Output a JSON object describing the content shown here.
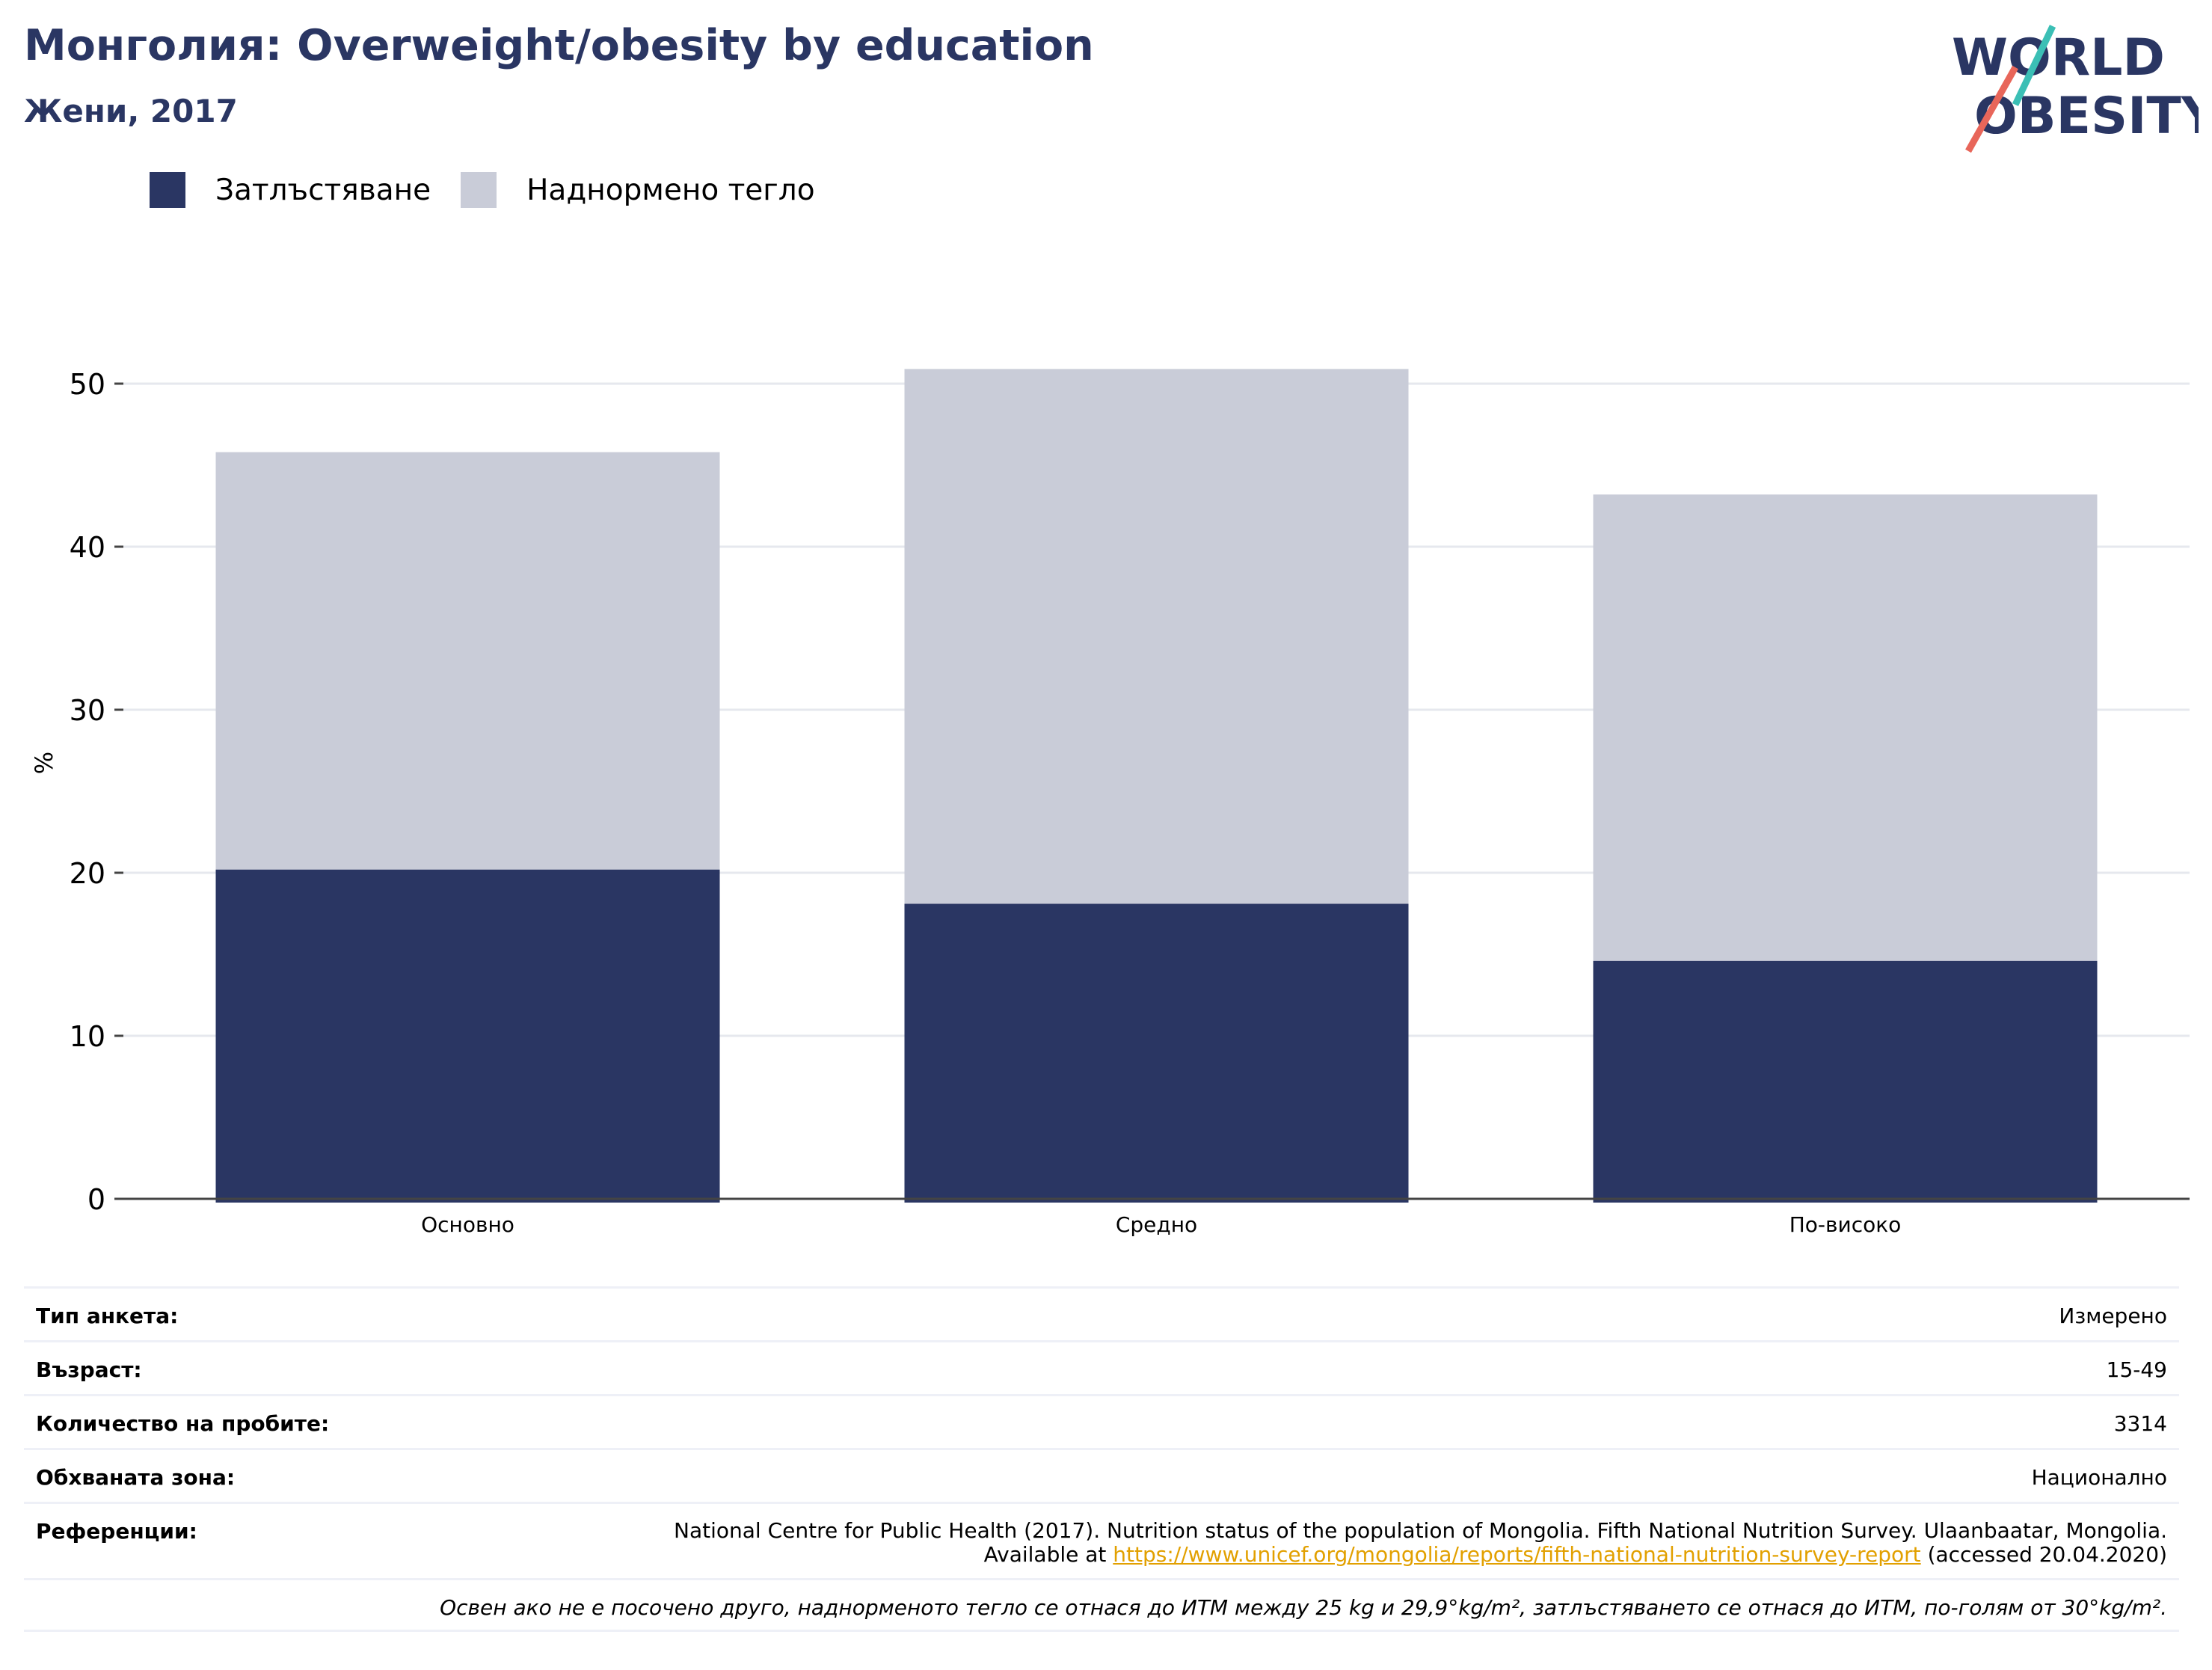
{
  "header": {
    "title": "Монголия: Overweight/obesity by education",
    "subtitle": "Жени, 2017"
  },
  "logo": {
    "line1": "WORLD",
    "line2": "OBESITY",
    "colors": {
      "text": "#2a3663",
      "slash_teal": "#3bbfb5",
      "slash_red": "#e8665a"
    }
  },
  "colors": {
    "obesity": "#2a3663",
    "overweight": "#c9ccd8",
    "grid": "#e6e8ee",
    "axis": "#444444"
  },
  "chart_data": {
    "type": "bar",
    "stacked": true,
    "categories": [
      "Основно",
      "Средно",
      "По-високо"
    ],
    "series": [
      {
        "name": "Затлъстяване",
        "values": [
          20.2,
          18.1,
          14.6
        ],
        "color": "#2a3663"
      },
      {
        "name": "Наднормено тегло",
        "values": [
          25.6,
          32.8,
          28.6
        ],
        "color": "#c9ccd8"
      }
    ],
    "totals": [
      45.8,
      50.9,
      43.2
    ],
    "ylabel": "%",
    "ylim": [
      0,
      50
    ],
    "yticks": [
      0,
      10,
      20,
      30,
      40,
      50
    ],
    "grid": true,
    "legend_position": "top-left"
  },
  "info": {
    "rows": [
      {
        "label": "Тип анкета:",
        "value": "Измерено"
      },
      {
        "label": "Възраст:",
        "value": "15-49"
      },
      {
        "label": "Количество на пробите:",
        "value": "3314"
      },
      {
        "label": "Обхваната зона:",
        "value": "Национално"
      }
    ],
    "reference": {
      "label": "Референции:",
      "text_before": "National Centre for Public Health (2017). Nutrition status of the population of Mongolia. Fifth National Nutrition Survey. Ulaanbaatar, Mongolia. Available at ",
      "link": "https://www.unicef.org/mongolia/reports/fifth-national-nutrition-survey-report",
      "text_after": " (accessed 20.04.2020)"
    },
    "note": "Освен ако не е посочено друго, наднорменото тегло се отнася до ИТМ между 25 kg и 29,9°kg/m², затлъстяването се отнася до ИТМ, по-голям от 30°kg/m²."
  }
}
